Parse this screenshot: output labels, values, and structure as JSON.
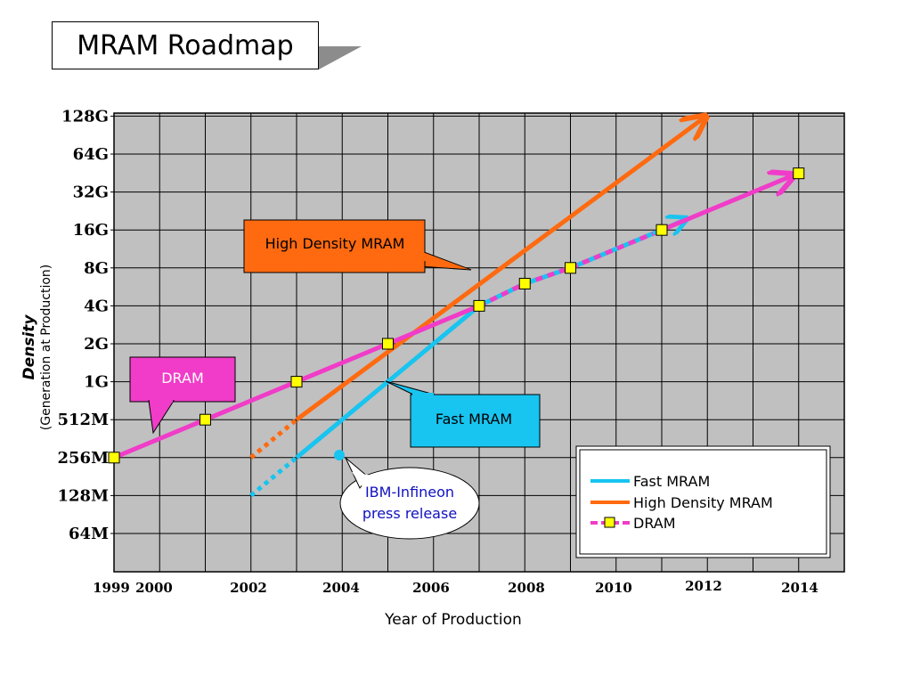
{
  "title": "MRAM Roadmap",
  "chart_data": {
    "type": "line",
    "ylabel": "Density",
    "ylabel_sub": "(Generation at Production)",
    "xlabel": "Year of Production",
    "y_scale": "log2",
    "y_ticks": [
      "64M",
      "128M",
      "256M",
      "512M",
      "1G",
      "2G",
      "4G",
      "8G",
      "16G",
      "32G",
      "64G",
      "128G"
    ],
    "x_ticks": [
      "1999",
      "2000",
      "2002",
      "2004",
      "2006",
      "2008",
      "2010",
      "2012",
      "2014"
    ],
    "xlim": [
      1999,
      2015
    ],
    "grid": true,
    "legend_position": "bottom-right",
    "series": [
      {
        "name": "Fast MRAM",
        "color": "#18c4f0",
        "dashed_segment": [
          [
            "2002",
            "128M"
          ],
          [
            "2003",
            "256M"
          ]
        ],
        "points": [
          [
            "2003",
            "256M"
          ],
          [
            "2007",
            "4G"
          ]
        ],
        "continues_as": "DRAM"
      },
      {
        "name": "High Density MRAM",
        "color": "#ff6a10",
        "dashed_segment": [
          [
            "2002",
            "256M"
          ],
          [
            "2003",
            "512M"
          ]
        ],
        "points": [
          [
            "2003",
            "512M"
          ],
          [
            "2012",
            "128G"
          ]
        ],
        "arrow": true
      },
      {
        "name": "DRAM",
        "color": "#f03cc8",
        "marker": "yellow-square",
        "points": [
          [
            "1999",
            "256M"
          ],
          [
            "2001",
            "512M"
          ],
          [
            "2003",
            "1G"
          ],
          [
            "2005",
            "2G"
          ],
          [
            "2007",
            "4G"
          ],
          [
            "2008",
            "6G"
          ],
          [
            "2009",
            "8G"
          ],
          [
            "2011",
            "16G"
          ],
          [
            "2014",
            "45G"
          ]
        ],
        "arrow": true
      }
    ],
    "annotations": [
      {
        "text": "High Density MRAM",
        "color": "#ff6a10"
      },
      {
        "text": "DRAM",
        "color": "#f03cc8"
      },
      {
        "text": "Fast MRAM",
        "color": "#18c4f0"
      },
      {
        "text_line1": "IBM-Infineon",
        "text_line2": "press release",
        "point": [
          "2004",
          "256M"
        ]
      }
    ]
  },
  "colors": {
    "plot_bg": "#c0c0c0",
    "grid": "#000000",
    "fast_mram": "#18c4f0",
    "high_density_mram": "#ff6a10",
    "dram": "#f03cc8",
    "marker": "#ffff00",
    "ibm_text": "#1010c0"
  }
}
